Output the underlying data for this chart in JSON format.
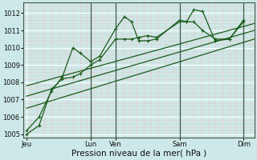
{
  "background_color": "#cce8e8",
  "grid_color_major": "#ffffff",
  "grid_color_minor": "#e8c8c8",
  "line_color": "#1a5c1a",
  "xlabel": "Pression niveau de la mer( hPa )",
  "ylim": [
    1004.8,
    1012.6
  ],
  "yticks": [
    1005,
    1006,
    1007,
    1008,
    1009,
    1010,
    1011,
    1012
  ],
  "xlim": [
    0,
    130
  ],
  "xtick_positions": [
    2,
    38,
    52,
    88,
    124
  ],
  "xtick_labels": [
    "Jeu",
    "Lun",
    "Ven",
    "Sam",
    "Dim"
  ],
  "vline_positions": [
    38,
    52,
    88,
    124
  ],
  "series1_x": [
    2,
    9,
    16,
    22,
    28,
    32,
    38,
    43,
    52,
    57,
    61,
    65,
    70,
    75,
    88,
    92,
    96,
    101,
    108,
    116,
    124
  ],
  "series1_y": [
    1005.2,
    1006.0,
    1007.5,
    1008.3,
    1010.0,
    1009.7,
    1009.2,
    1009.5,
    1011.1,
    1011.8,
    1011.5,
    1010.4,
    1010.4,
    1010.5,
    1011.6,
    1011.5,
    1012.2,
    1012.1,
    1010.4,
    1010.5,
    1011.6
  ],
  "series2_x": [
    2,
    9,
    16,
    22,
    28,
    32,
    38,
    43,
    52,
    57,
    61,
    65,
    70,
    75,
    88,
    92,
    96,
    101,
    108,
    116,
    124
  ],
  "series2_y": [
    1005.0,
    1005.5,
    1007.6,
    1008.2,
    1008.3,
    1008.5,
    1009.0,
    1009.3,
    1010.5,
    1010.5,
    1010.5,
    1010.6,
    1010.7,
    1010.6,
    1011.5,
    1011.5,
    1011.5,
    1011.0,
    1010.5,
    1010.5,
    1011.5
  ],
  "trend1_x": [
    2,
    130
  ],
  "trend1_y": [
    1006.5,
    1010.5
  ],
  "trend2_x": [
    2,
    130
  ],
  "trend2_y": [
    1007.2,
    1011.0
  ],
  "trend3_x": [
    2,
    130
  ],
  "trend3_y": [
    1007.8,
    1011.4
  ],
  "xlabel_fontsize": 7.5,
  "tick_fontsize": 6.0
}
